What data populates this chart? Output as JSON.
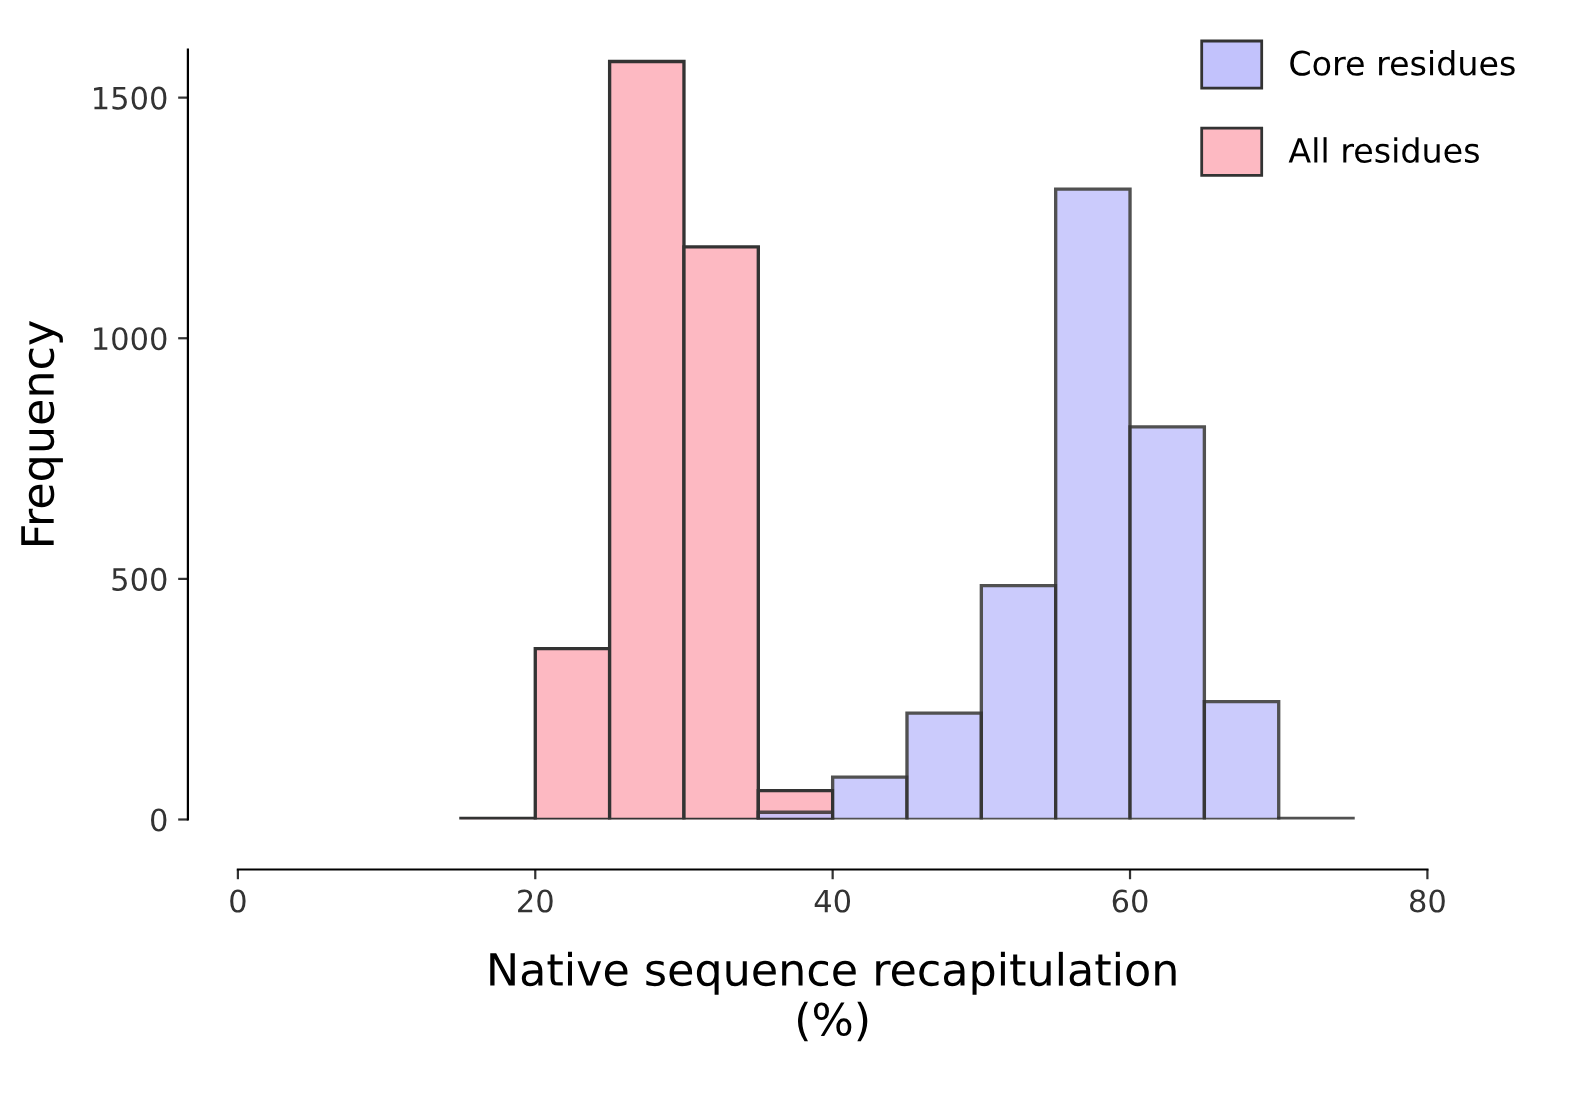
{
  "chart_data": {
    "type": "histogram",
    "xlabel": "Native sequence recapitulation\n(%)",
    "ylabel": "Frequency",
    "bins": [
      15,
      20,
      25,
      30,
      35,
      40,
      45,
      50,
      55,
      60,
      65,
      70,
      75
    ],
    "series": [
      {
        "name": "Core residues",
        "color": "#c2c2fc",
        "values": [
          null,
          null,
          null,
          null,
          15,
          88,
          221,
          486,
          1310,
          816,
          245,
          2
        ]
      },
      {
        "name": "All residues",
        "color": "#fdb9c2",
        "values": [
          2,
          355,
          1575,
          1190,
          60,
          null,
          null,
          null,
          null,
          null,
          null,
          null
        ]
      }
    ],
    "xlim": [
      0,
      80
    ],
    "xticks": [
      0,
      20,
      40,
      60,
      80
    ],
    "ylim": [
      0,
      1600
    ],
    "yticks": [
      0,
      500,
      1000,
      1500
    ],
    "grid": false,
    "legend": "top right"
  }
}
